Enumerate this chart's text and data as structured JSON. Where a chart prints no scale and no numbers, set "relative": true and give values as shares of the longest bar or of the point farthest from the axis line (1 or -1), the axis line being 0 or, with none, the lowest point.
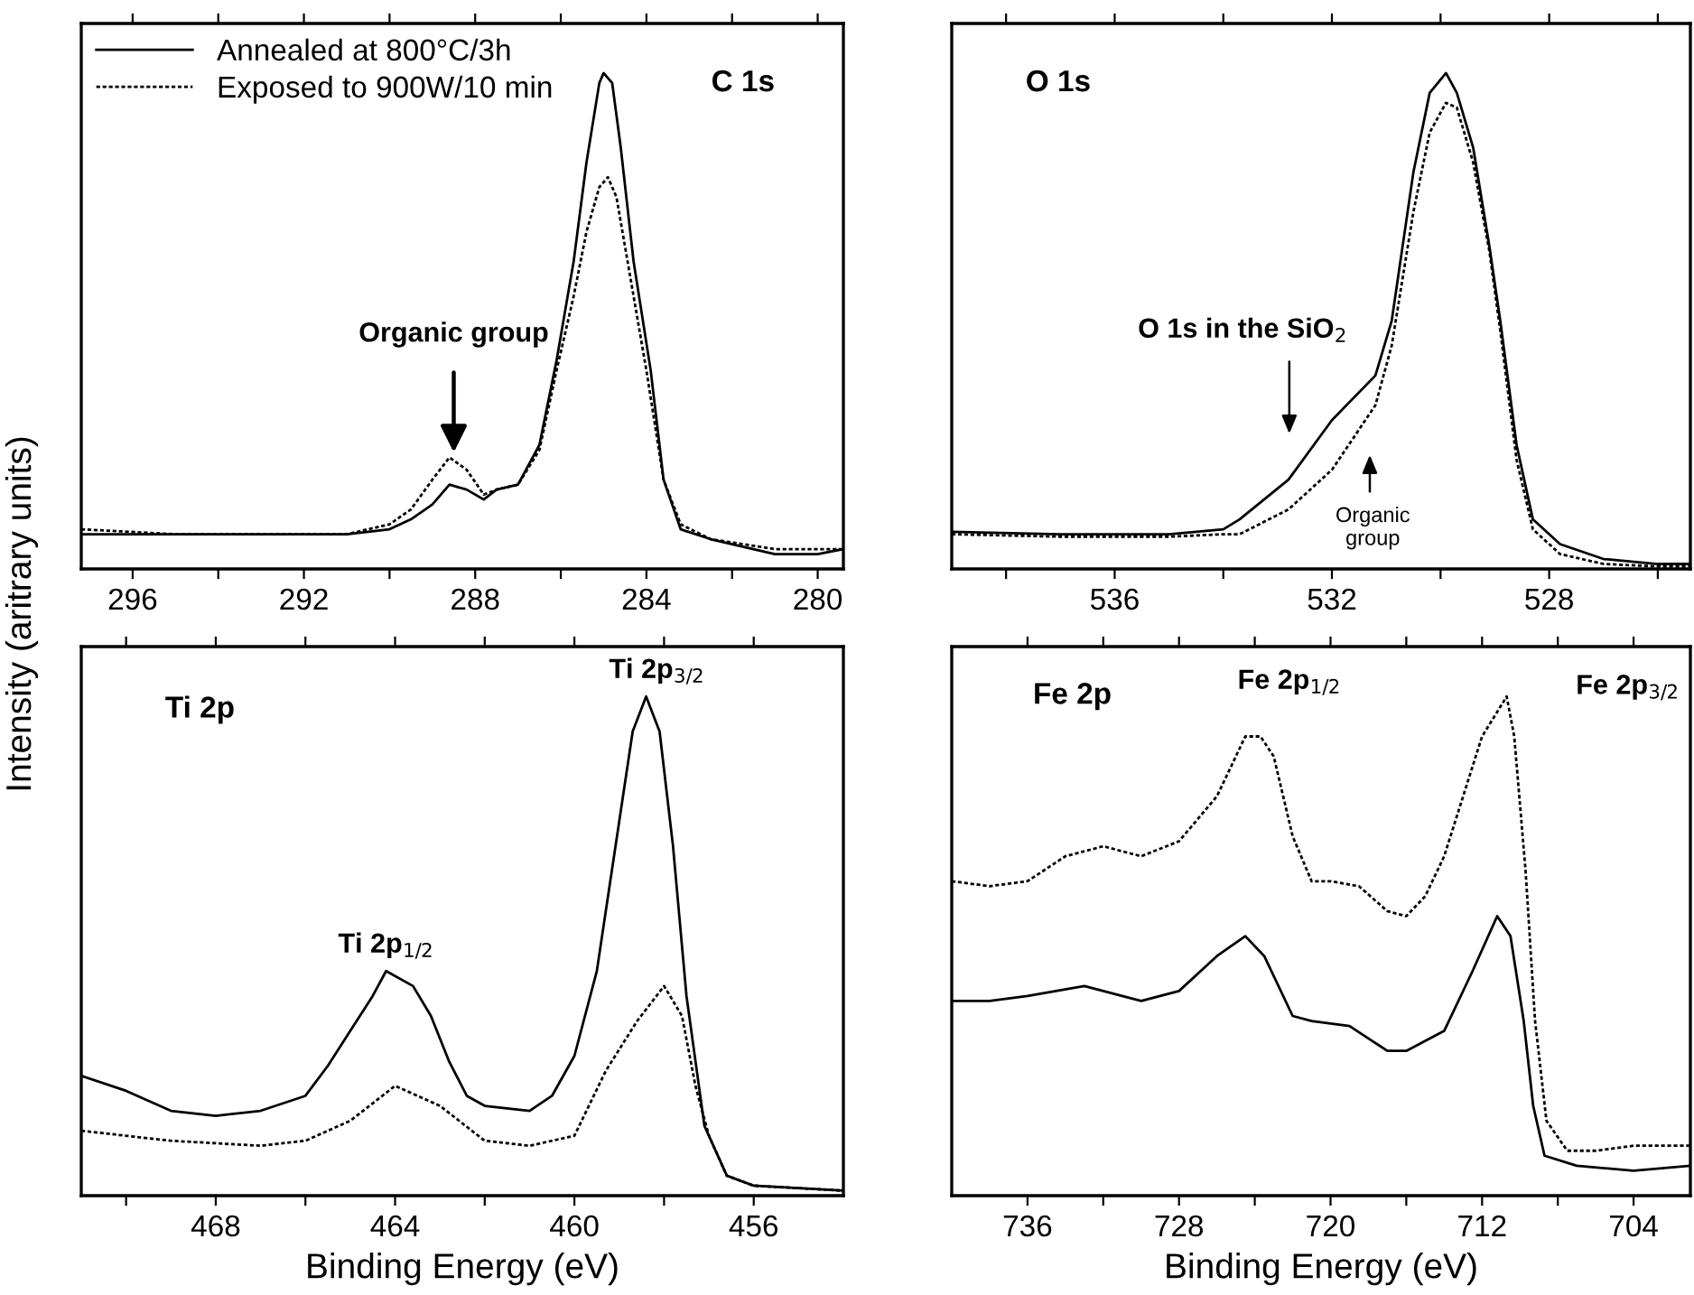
{
  "chart_data": [
    {
      "type": "line",
      "relative": true,
      "ylabel": "Intensity (aritrary units)",
      "xlim": [
        297.2,
        279.4
      ],
      "xticks": [
        296,
        {
          "value": 294,
          "label": null
        },
        292,
        {
          "value": 290,
          "label": null
        },
        288,
        {
          "value": 286,
          "label": null
        },
        284,
        {
          "value": 282,
          "label": null
        },
        280
      ],
      "tick_labels": "x",
      "legend": "top left",
      "series": [
        {
          "name": "Annealed at 800°C/3h",
          "color": "#000000",
          "line_style": "solid",
          "x": [
            297.2,
            295,
            293,
            291,
            290,
            289.5,
            289,
            288.6,
            288.2,
            287.8,
            287.5,
            287,
            286.5,
            286.1,
            285.7,
            285.4,
            285.1,
            285.0,
            284.8,
            284.6,
            284.3,
            283.9,
            283.6,
            283.2,
            282.5,
            281,
            280,
            279.4
          ],
          "values": [
            0.07,
            0.07,
            0.07,
            0.07,
            0.08,
            0.1,
            0.13,
            0.17,
            0.16,
            0.14,
            0.16,
            0.17,
            0.25,
            0.42,
            0.62,
            0.82,
            0.98,
            1.0,
            0.98,
            0.85,
            0.62,
            0.4,
            0.18,
            0.08,
            0.06,
            0.03,
            0.03,
            0.04
          ]
        },
        {
          "name": "Exposed to 900W/10 min",
          "color": "#000000",
          "line_style": "dotted",
          "x": [
            297.2,
            295,
            293,
            291,
            290,
            289.5,
            289,
            288.6,
            288.2,
            287.8,
            287.5,
            287,
            286.5,
            286.1,
            285.7,
            285.4,
            285.1,
            284.9,
            284.7,
            284.4,
            284.0,
            283.6,
            283.2,
            282.5,
            281,
            280,
            279.4
          ],
          "values": [
            0.08,
            0.07,
            0.07,
            0.07,
            0.09,
            0.12,
            0.18,
            0.225,
            0.2,
            0.15,
            0.16,
            0.17,
            0.24,
            0.4,
            0.55,
            0.68,
            0.77,
            0.79,
            0.75,
            0.6,
            0.4,
            0.18,
            0.09,
            0.06,
            0.04,
            0.04,
            0.04
          ]
        }
      ],
      "annotations": [
        "C 1s",
        {
          "text": "Organic group",
          "x": 288.5,
          "y": 0.225
        }
      ]
    },
    {
      "type": "line",
      "relative": true,
      "xlim": [
        539,
        525.4
      ],
      "xticks": [
        {
          "value": 538,
          "label": null
        },
        536,
        {
          "value": 534,
          "label": null
        },
        532,
        {
          "value": 530,
          "label": null
        },
        528,
        {
          "value": 526,
          "label": null
        }
      ],
      "tick_labels": "x",
      "series": [
        {
          "color": "#000000",
          "line_style": "solid",
          "x": [
            539,
            537,
            535,
            534,
            533.7,
            532.8,
            532,
            531.2,
            530.9,
            530.5,
            530.2,
            529.9,
            529.7,
            529.4,
            529.1,
            528.9,
            528.6,
            528.3,
            527.8,
            527,
            526,
            525.4
          ],
          "values": [
            0.075,
            0.07,
            0.07,
            0.08,
            0.1,
            0.18,
            0.3,
            0.39,
            0.5,
            0.8,
            0.96,
            1.0,
            0.96,
            0.85,
            0.65,
            0.5,
            0.25,
            0.1,
            0.05,
            0.02,
            0.01,
            0.01
          ]
        },
        {
          "color": "#000000",
          "line_style": "dotted",
          "x": [
            539,
            537,
            535,
            534,
            533.7,
            532.8,
            532,
            531.2,
            530.9,
            530.5,
            530.2,
            529.9,
            529.7,
            529.4,
            529.1,
            528.9,
            528.6,
            528.3,
            527.8,
            527,
            526,
            525.4
          ],
          "values": [
            0.07,
            0.065,
            0.065,
            0.07,
            0.07,
            0.12,
            0.2,
            0.33,
            0.45,
            0.72,
            0.88,
            0.94,
            0.93,
            0.82,
            0.64,
            0.48,
            0.22,
            0.08,
            0.03,
            0.01,
            0.005,
            0.005
          ]
        }
      ],
      "annotations": [
        "O 1s",
        "O 1s in the SiO$_{2}$",
        "Organic\ngroup"
      ]
    },
    {
      "type": "line",
      "relative": true,
      "xlabel": "Binding Energy (eV)",
      "xlim": [
        471,
        454
      ],
      "xticks": [
        {
          "value": 470,
          "label": null
        },
        468,
        {
          "value": 466,
          "label": null
        },
        464,
        {
          "value": 462,
          "label": null
        },
        460,
        {
          "value": 458,
          "label": null
        },
        456
      ],
      "tick_labels": "x",
      "series": [
        {
          "color": "#000000",
          "line_style": "solid",
          "x": [
            471,
            470,
            469,
            468,
            467,
            466,
            465.5,
            465,
            464.5,
            464.2,
            463.6,
            463.2,
            462.8,
            462.4,
            462,
            461,
            460.5,
            460,
            459.5,
            459,
            458.7,
            458.4,
            458.1,
            457.8,
            457.5,
            457.1,
            456.6,
            456,
            455,
            454
          ],
          "values": [
            0.24,
            0.21,
            0.17,
            0.16,
            0.17,
            0.2,
            0.26,
            0.33,
            0.4,
            0.45,
            0.42,
            0.36,
            0.27,
            0.2,
            0.18,
            0.17,
            0.2,
            0.28,
            0.45,
            0.75,
            0.93,
            1.0,
            0.93,
            0.7,
            0.4,
            0.14,
            0.04,
            0.02,
            0.015,
            0.01
          ]
        },
        {
          "color": "#000000",
          "line_style": "dotted",
          "x": [
            471,
            469,
            467,
            466,
            465,
            464,
            463,
            462,
            461,
            460,
            459.3,
            458.6,
            458.0,
            457.6,
            457.3,
            457,
            456.6,
            456,
            455,
            454
          ],
          "values": [
            0.13,
            0.11,
            0.1,
            0.11,
            0.15,
            0.22,
            0.18,
            0.11,
            0.1,
            0.12,
            0.25,
            0.35,
            0.42,
            0.36,
            0.22,
            0.12,
            0.04,
            0.02,
            0.015,
            0.01
          ]
        }
      ],
      "annotations": [
        "Ti 2p",
        {
          "text": "Ti 2p$_{3/2}$",
          "x": 458.4,
          "y": 1.0
        },
        {
          "text": "Ti 2p$_{1/2}$",
          "x": 464.2,
          "y": 0.45
        }
      ]
    },
    {
      "type": "line",
      "relative": true,
      "xlabel": "Binding Energy (eV)",
      "xlim": [
        740,
        701
      ],
      "xticks": [
        736,
        {
          "value": 732,
          "label": null
        },
        728,
        {
          "value": 724,
          "label": null
        },
        720,
        {
          "value": 716,
          "label": null
        },
        712,
        {
          "value": 708,
          "label": null
        },
        704
      ],
      "tick_labels": "x",
      "series": [
        {
          "color": "#000000",
          "line_style": "solid",
          "x": [
            740,
            738,
            736,
            733,
            730,
            728,
            726,
            724.5,
            723.5,
            722,
            721,
            719,
            717,
            716,
            714,
            712.5,
            711.2,
            710.5,
            709.8,
            709.3,
            708.7,
            707,
            704,
            701
          ],
          "values": [
            0.39,
            0.39,
            0.4,
            0.42,
            0.39,
            0.41,
            0.48,
            0.52,
            0.48,
            0.36,
            0.35,
            0.34,
            0.29,
            0.29,
            0.33,
            0.45,
            0.56,
            0.52,
            0.35,
            0.18,
            0.08,
            0.06,
            0.05,
            0.06
          ]
        },
        {
          "color": "#000000",
          "line_style": "dotted",
          "x": [
            740,
            738,
            736,
            734,
            732,
            730,
            728,
            726,
            724.5,
            723.7,
            723,
            722,
            721,
            720,
            718.5,
            717,
            716,
            715,
            714,
            713,
            712,
            710.7,
            710.3,
            709.7,
            709.2,
            708.6,
            707.5,
            706,
            704,
            701
          ],
          "values": [
            0.63,
            0.62,
            0.63,
            0.68,
            0.7,
            0.68,
            0.71,
            0.8,
            0.92,
            0.92,
            0.88,
            0.72,
            0.63,
            0.63,
            0.62,
            0.57,
            0.56,
            0.6,
            0.68,
            0.8,
            0.92,
            1.0,
            0.92,
            0.65,
            0.35,
            0.15,
            0.09,
            0.09,
            0.1,
            0.1
          ]
        }
      ],
      "annotations": [
        "Fe 2p",
        {
          "text": "Fe 2p$_{1/2}$",
          "x": 723.7,
          "y": 0.92
        },
        {
          "text": "Fe 2p$_{3/2}$",
          "x": 710.7,
          "y": 1.0
        }
      ]
    }
  ]
}
